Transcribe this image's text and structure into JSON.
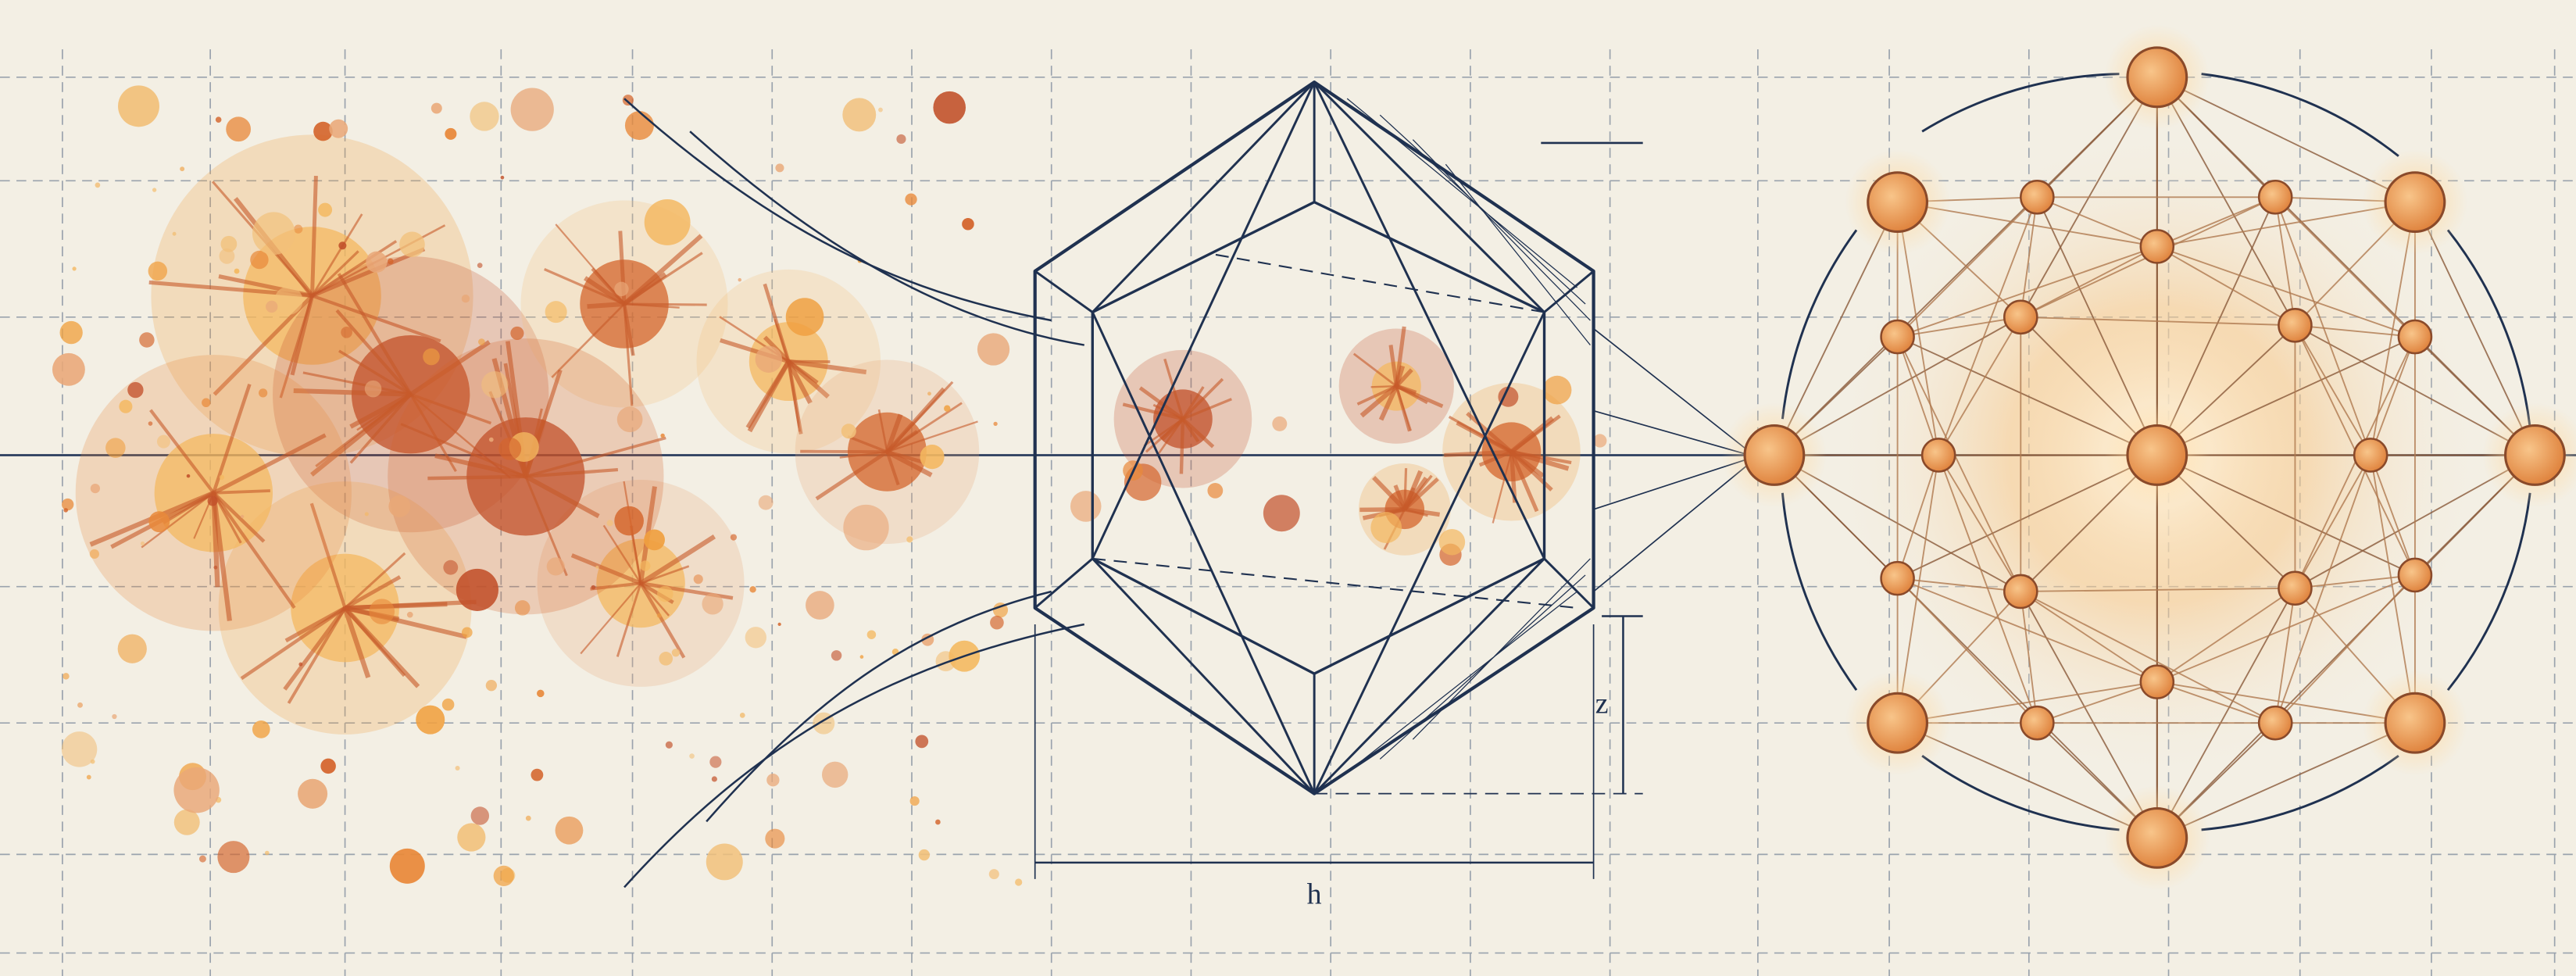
{
  "labels": {
    "width": "h",
    "height": "z"
  }
}
